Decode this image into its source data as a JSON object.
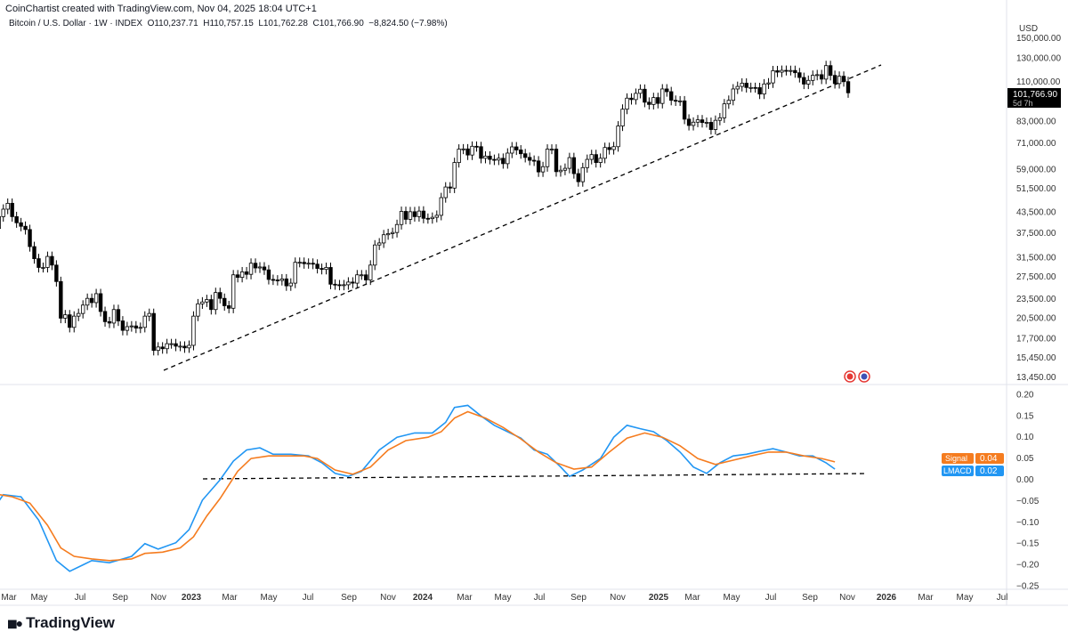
{
  "header": {
    "credit": "CoinChartist created with TradingView.com, Nov 04, 2025 18:04 UTC+1",
    "legend": "Bitcoin / U.S. Dollar · 1W · INDEX  O110,237.71  H110,757.15  L101,762.28  C101,766.90  −8,824.50 (−7.98%)"
  },
  "brand": "TradingView",
  "colors": {
    "lmacd": "#2196f3",
    "signal": "#f57c1f",
    "up": "#ffffff",
    "down": "#000000"
  },
  "chart_data": [
    {
      "type": "candlestick",
      "title": "Bitcoin / U.S. Dollar · 1W · INDEX",
      "yscale": "log",
      "currency": "USD",
      "ylim": [
        12500,
        165000
      ],
      "yticks": [
        150000,
        130000,
        110000,
        83000,
        71000,
        59000,
        51500,
        43500,
        37500,
        31500,
        27500,
        23500,
        20500,
        17700,
        15450,
        13450
      ],
      "ytick_labels": [
        "150,000.00",
        "130,000.00",
        "110,000.00",
        "83,000.00",
        "71,000.00",
        "59,000.00",
        "51,500.00",
        "43,500.00",
        "37,500.00",
        "31,500.00",
        "27,500.00",
        "23,500.00",
        "20,500.00",
        "17,700.00",
        "15,450.00",
        "13,450.00"
      ],
      "last_price": {
        "value": "101,766.90",
        "countdown": "5d 7h"
      },
      "first_open_k": 38.0,
      "weekly_close_k": [
        38.8,
        42.2,
        44.5,
        46.4,
        42.2,
        40.4,
        39.4,
        38.5,
        34.1,
        31.3,
        29.4,
        29.4,
        31.8,
        29.9,
        26.6,
        20.5,
        21.0,
        19.2,
        20.8,
        21.2,
        22.5,
        23.6,
        22.9,
        24.4,
        21.5,
        20.0,
        19.8,
        21.8,
        20.1,
        18.8,
        19.3,
        19.4,
        19.1,
        19.2,
        20.8,
        21.2,
        16.3,
        16.7,
        16.5,
        17.1,
        17.1,
        16.8,
        16.8,
        16.6,
        16.9,
        20.8,
        22.7,
        23.0,
        23.4,
        21.8,
        24.6,
        23.6,
        22.4,
        22.0,
        27.9,
        27.4,
        28.5,
        28.0,
        30.3,
        29.3,
        29.5,
        28.9,
        27.0,
        26.9,
        26.8,
        27.1,
        25.8,
        26.3,
        30.5,
        30.5,
        30.2,
        30.3,
        30.1,
        29.2,
        29.0,
        29.4,
        26.1,
        26.0,
        25.9,
        26.0,
        26.5,
        26.3,
        27.9,
        27.9,
        26.9,
        29.9,
        34.5,
        35.0,
        37.1,
        37.4,
        37.7,
        39.9,
        43.8,
        41.4,
        43.7,
        42.2,
        43.9,
        41.7,
        41.6,
        42.0,
        42.6,
        48.3,
        52.1,
        51.7,
        62.0,
        68.2,
        68.3,
        65.4,
        69.6,
        69.4,
        63.9,
        64.9,
        63.4,
        63.1,
        63.9,
        61.5,
        66.3,
        69.3,
        67.8,
        66.0,
        64.3,
        63.0,
        62.7,
        58.0,
        60.2,
        68.2,
        68.2,
        58.1,
        58.7,
        59.5,
        64.2,
        57.3,
        54.1,
        59.8,
        63.4,
        65.6,
        62.0,
        63.9,
        69.0,
        68.0,
        69.4,
        80.4,
        90.6,
        98.0,
        97.0,
        101.4,
        104.4,
        95.2,
        93.7,
        98.4,
        94.4,
        104.6,
        102.6,
        96.5,
        96.1,
        96.1,
        84.4,
        80.7,
        82.6,
        84.0,
        82.4,
        82.5,
        78.4,
        83.7,
        85.2,
        94.1,
        96.5,
        104.6,
        106.5,
        109.0,
        105.7,
        105.7,
        105.6,
        100.9,
        108.4,
        109.2,
        119.1,
        117.9,
        119.4,
        119.3,
        119.3,
        117.4,
        113.5,
        108.3,
        111.2,
        115.3,
        115.8,
        112.2,
        123.5,
        115.2,
        108.7,
        114.5,
        110.2,
        101.8
      ]
    },
    {
      "type": "line",
      "title": "LMACD",
      "ylim": [
        -0.26,
        0.21
      ],
      "yticks": [
        0.2,
        0.15,
        0.1,
        0.05,
        0.0,
        -0.05,
        -0.1,
        -0.15,
        -0.2,
        -0.25
      ],
      "ytick_labels": [
        "0.20",
        "0.15",
        "0.10",
        "0.05",
        "0.00",
        "−0.05",
        "−0.10",
        "−0.15",
        "−0.20",
        "−0.25"
      ],
      "x_unit": "weeks since first candle",
      "series": [
        {
          "name": "LMACD",
          "label_value": "0.02",
          "points": [
            [
              0,
              -0.065
            ],
            [
              2,
              -0.035
            ],
            [
              6,
              -0.04
            ],
            [
              10,
              -0.095
            ],
            [
              14,
              -0.19
            ],
            [
              17,
              -0.215
            ],
            [
              20,
              -0.2
            ],
            [
              22,
              -0.19
            ],
            [
              26,
              -0.195
            ],
            [
              31,
              -0.18
            ],
            [
              34,
              -0.15
            ],
            [
              37,
              -0.163
            ],
            [
              41,
              -0.148
            ],
            [
              44,
              -0.117
            ],
            [
              47,
              -0.048
            ],
            [
              51,
              0
            ],
            [
              54,
              0.044
            ],
            [
              57,
              0.07
            ],
            [
              60,
              0.075
            ],
            [
              63,
              0.06
            ],
            [
              67,
              0.06
            ],
            [
              71,
              0.056
            ],
            [
              74,
              0.04
            ],
            [
              77,
              0.015
            ],
            [
              80,
              0.008
            ],
            [
              83,
              0.02
            ],
            [
              87,
              0.07
            ],
            [
              91,
              0.1
            ],
            [
              95,
              0.11
            ],
            [
              99,
              0.11
            ],
            [
              102,
              0.135
            ],
            [
              104,
              0.17
            ],
            [
              107,
              0.175
            ],
            [
              110,
              0.15
            ],
            [
              113,
              0.128
            ],
            [
              116,
              0.113
            ],
            [
              119,
              0.098
            ],
            [
              122,
              0.07
            ],
            [
              125,
              0.06
            ],
            [
              128,
              0.03
            ],
            [
              130,
              0.008
            ],
            [
              133,
              0.023
            ],
            [
              137,
              0.05
            ],
            [
              140,
              0.1
            ],
            [
              143,
              0.128
            ],
            [
              146,
              0.12
            ],
            [
              149,
              0.113
            ],
            [
              152,
              0.092
            ],
            [
              155,
              0.065
            ],
            [
              158,
              0.03
            ],
            [
              161,
              0.015
            ],
            [
              164,
              0.04
            ],
            [
              167,
              0.056
            ],
            [
              170,
              0.06
            ],
            [
              173,
              0.067
            ],
            [
              176,
              0.073
            ],
            [
              179,
              0.065
            ],
            [
              182,
              0.056
            ],
            [
              185,
              0.056
            ],
            [
              188,
              0.04
            ],
            [
              190,
              0.025
            ]
          ]
        },
        {
          "name": "Signal",
          "label_value": "0.04",
          "points": [
            [
              0,
              -0.033
            ],
            [
              4,
              -0.04
            ],
            [
              8,
              -0.055
            ],
            [
              12,
              -0.107
            ],
            [
              15,
              -0.16
            ],
            [
              18,
              -0.18
            ],
            [
              22,
              -0.186
            ],
            [
              26,
              -0.19
            ],
            [
              31,
              -0.186
            ],
            [
              34,
              -0.173
            ],
            [
              38,
              -0.17
            ],
            [
              42,
              -0.16
            ],
            [
              45,
              -0.134
            ],
            [
              48,
              -0.085
            ],
            [
              51,
              -0.044
            ],
            [
              55,
              0.02
            ],
            [
              58,
              0.05
            ],
            [
              62,
              0.056
            ],
            [
              66,
              0.056
            ],
            [
              70,
              0.056
            ],
            [
              73,
              0.05
            ],
            [
              77,
              0.023
            ],
            [
              81,
              0.013
            ],
            [
              85,
              0.03
            ],
            [
              89,
              0.07
            ],
            [
              93,
              0.092
            ],
            [
              98,
              0.1
            ],
            [
              101,
              0.113
            ],
            [
              104,
              0.145
            ],
            [
              107,
              0.16
            ],
            [
              111,
              0.145
            ],
            [
              115,
              0.123
            ],
            [
              119,
              0.096
            ],
            [
              123,
              0.065
            ],
            [
              127,
              0.04
            ],
            [
              131,
              0.025
            ],
            [
              135,
              0.03
            ],
            [
              139,
              0.065
            ],
            [
              143,
              0.098
            ],
            [
              147,
              0.11
            ],
            [
              151,
              0.1
            ],
            [
              155,
              0.08
            ],
            [
              159,
              0.05
            ],
            [
              163,
              0.036
            ],
            [
              167,
              0.046
            ],
            [
              171,
              0.056
            ],
            [
              175,
              0.065
            ],
            [
              179,
              0.065
            ],
            [
              183,
              0.056
            ],
            [
              187,
              0.05
            ],
            [
              190,
              0.042
            ]
          ]
        }
      ]
    }
  ],
  "xaxis": {
    "labels": [
      "Mar",
      "May",
      "Jul",
      "Sep",
      "Nov",
      "2023",
      "Mar",
      "May",
      "Jul",
      "Sep",
      "Nov",
      "2024",
      "Mar",
      "May",
      "Jul",
      "Sep",
      "Nov",
      "2025",
      "Mar",
      "May",
      "Jul",
      "Sep",
      "Nov",
      "2026",
      "Mar",
      "May",
      "Jul"
    ]
  }
}
